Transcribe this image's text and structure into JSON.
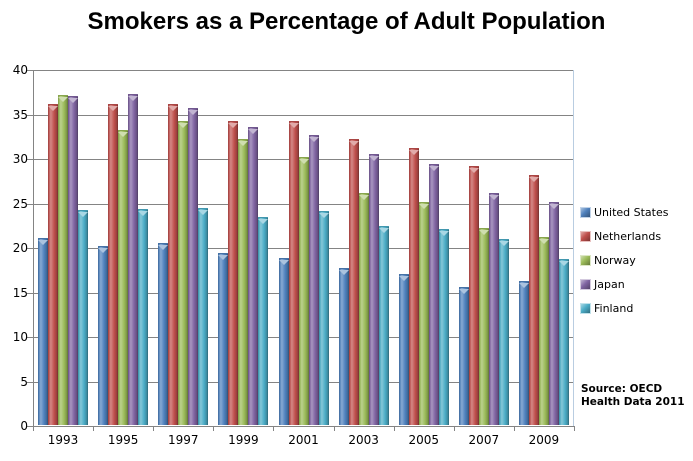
{
  "title": "Smokers as a Percentage of Adult Population",
  "source": {
    "line1": "Source: OECD",
    "line2": "Health Data 2011"
  },
  "chart_data": {
    "type": "bar",
    "title": "Smokers as a Percentage of Adult Population",
    "categories": [
      "1993",
      "1995",
      "1997",
      "1999",
      "2001",
      "2003",
      "2005",
      "2007",
      "2009"
    ],
    "series": [
      {
        "name": "United States",
        "color": "#4F81BD",
        "values": [
          20.9,
          20.0,
          20.3,
          19.2,
          18.7,
          17.5,
          16.9,
          15.4,
          16.1
        ]
      },
      {
        "name": "Netherlands",
        "color": "#C0504D",
        "values": [
          36,
          36,
          36,
          34,
          34,
          32,
          31,
          29,
          28
        ]
      },
      {
        "name": "Norway",
        "color": "#9BBB59",
        "values": [
          37,
          33,
          34,
          32,
          30,
          26,
          25,
          22,
          21
        ]
      },
      {
        "name": "Japan",
        "color": "#8064A2",
        "values": [
          36.9,
          37.1,
          35.5,
          33.4,
          32.5,
          30.3,
          29.2,
          26.0,
          24.9
        ]
      },
      {
        "name": "Finland",
        "color": "#4BACC6",
        "values": [
          24.0,
          24.2,
          24.3,
          23.3,
          23.9,
          22.3,
          21.9,
          20.8,
          18.5
        ]
      }
    ],
    "ylim": [
      0,
      40
    ],
    "y_ticks": [
      0,
      5,
      10,
      15,
      20,
      25,
      30,
      35,
      40
    ],
    "xlabel": "",
    "ylabel": "",
    "grid": true,
    "legend_position": "right",
    "source_note": "Source: OECD Health Data 2011"
  },
  "colors": {
    "gridline": "#848484",
    "axis": "#848484",
    "plot_border": "#B9CDE1",
    "text": "#000000",
    "background": "#FFFFFF"
  }
}
